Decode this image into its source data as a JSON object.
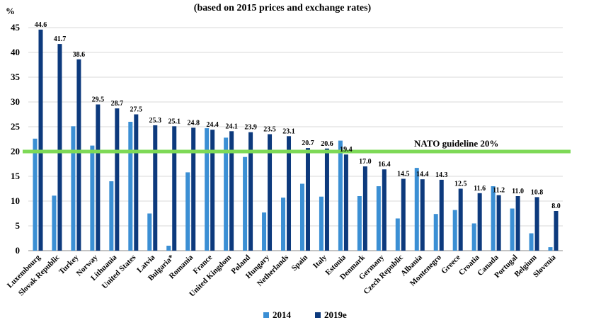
{
  "chart_data": {
    "type": "bar",
    "title": "(based on 2015 prices and exchange rates)",
    "ylabel": "%",
    "ylim": [
      0,
      45
    ],
    "yticks": [
      0,
      5,
      10,
      15,
      20,
      25,
      30,
      35,
      40,
      45
    ],
    "grid": true,
    "legend_position": "bottom",
    "categories": [
      "Luxembourg",
      "Slovak Republic",
      "Turkey",
      "Norway",
      "Lithuania",
      "United States",
      "Latvia",
      "Bulgaria*",
      "Romania",
      "France",
      "United Kingdom",
      "Poland",
      "Hungary",
      "Netherlands",
      "Spain",
      "Italy",
      "Estonia",
      "Denmark",
      "Germany",
      "Czech Republic",
      "Albania",
      "Montenegro",
      "Greece",
      "Croatia",
      "Canada",
      "Portugal",
      "Belgium",
      "Slovenia"
    ],
    "series": [
      {
        "name": "2014",
        "color": "#3b8fd4",
        "values": [
          22.6,
          11.1,
          25.1,
          21.2,
          14.0,
          26.0,
          7.5,
          1.0,
          15.8,
          24.7,
          22.8,
          18.9,
          7.7,
          10.7,
          13.5,
          10.9,
          22.2,
          11.0,
          13.0,
          6.5,
          16.7,
          7.4,
          8.2,
          5.5,
          13.0,
          8.5,
          3.5,
          0.7
        ]
      },
      {
        "name": "2019e",
        "color": "#0d3a7d",
        "values": [
          44.6,
          41.7,
          38.6,
          29.5,
          28.7,
          27.5,
          25.3,
          25.1,
          24.8,
          24.4,
          24.1,
          23.9,
          23.5,
          23.1,
          20.7,
          20.6,
          19.4,
          17.0,
          16.4,
          14.5,
          14.4,
          14.3,
          12.5,
          11.6,
          11.2,
          11.0,
          10.8,
          8.0
        ],
        "labels": [
          "44.6",
          "41.7",
          "38.6",
          "29.5",
          "28.7",
          "27.5",
          "25.3",
          "25.1",
          "24.8",
          "24.4",
          "24.1",
          "23.9",
          "23.5",
          "23.1",
          "20.7",
          "20.6",
          "19.4",
          "17.0",
          "16.4",
          "14.5",
          "14.4",
          "14.3",
          "12.5",
          "11.6",
          "11.2",
          "11.0",
          "10.8",
          "8.0"
        ]
      }
    ],
    "reference_line": {
      "value": 20,
      "label": "NATO guideline 20%",
      "color": "#7ed957"
    }
  }
}
